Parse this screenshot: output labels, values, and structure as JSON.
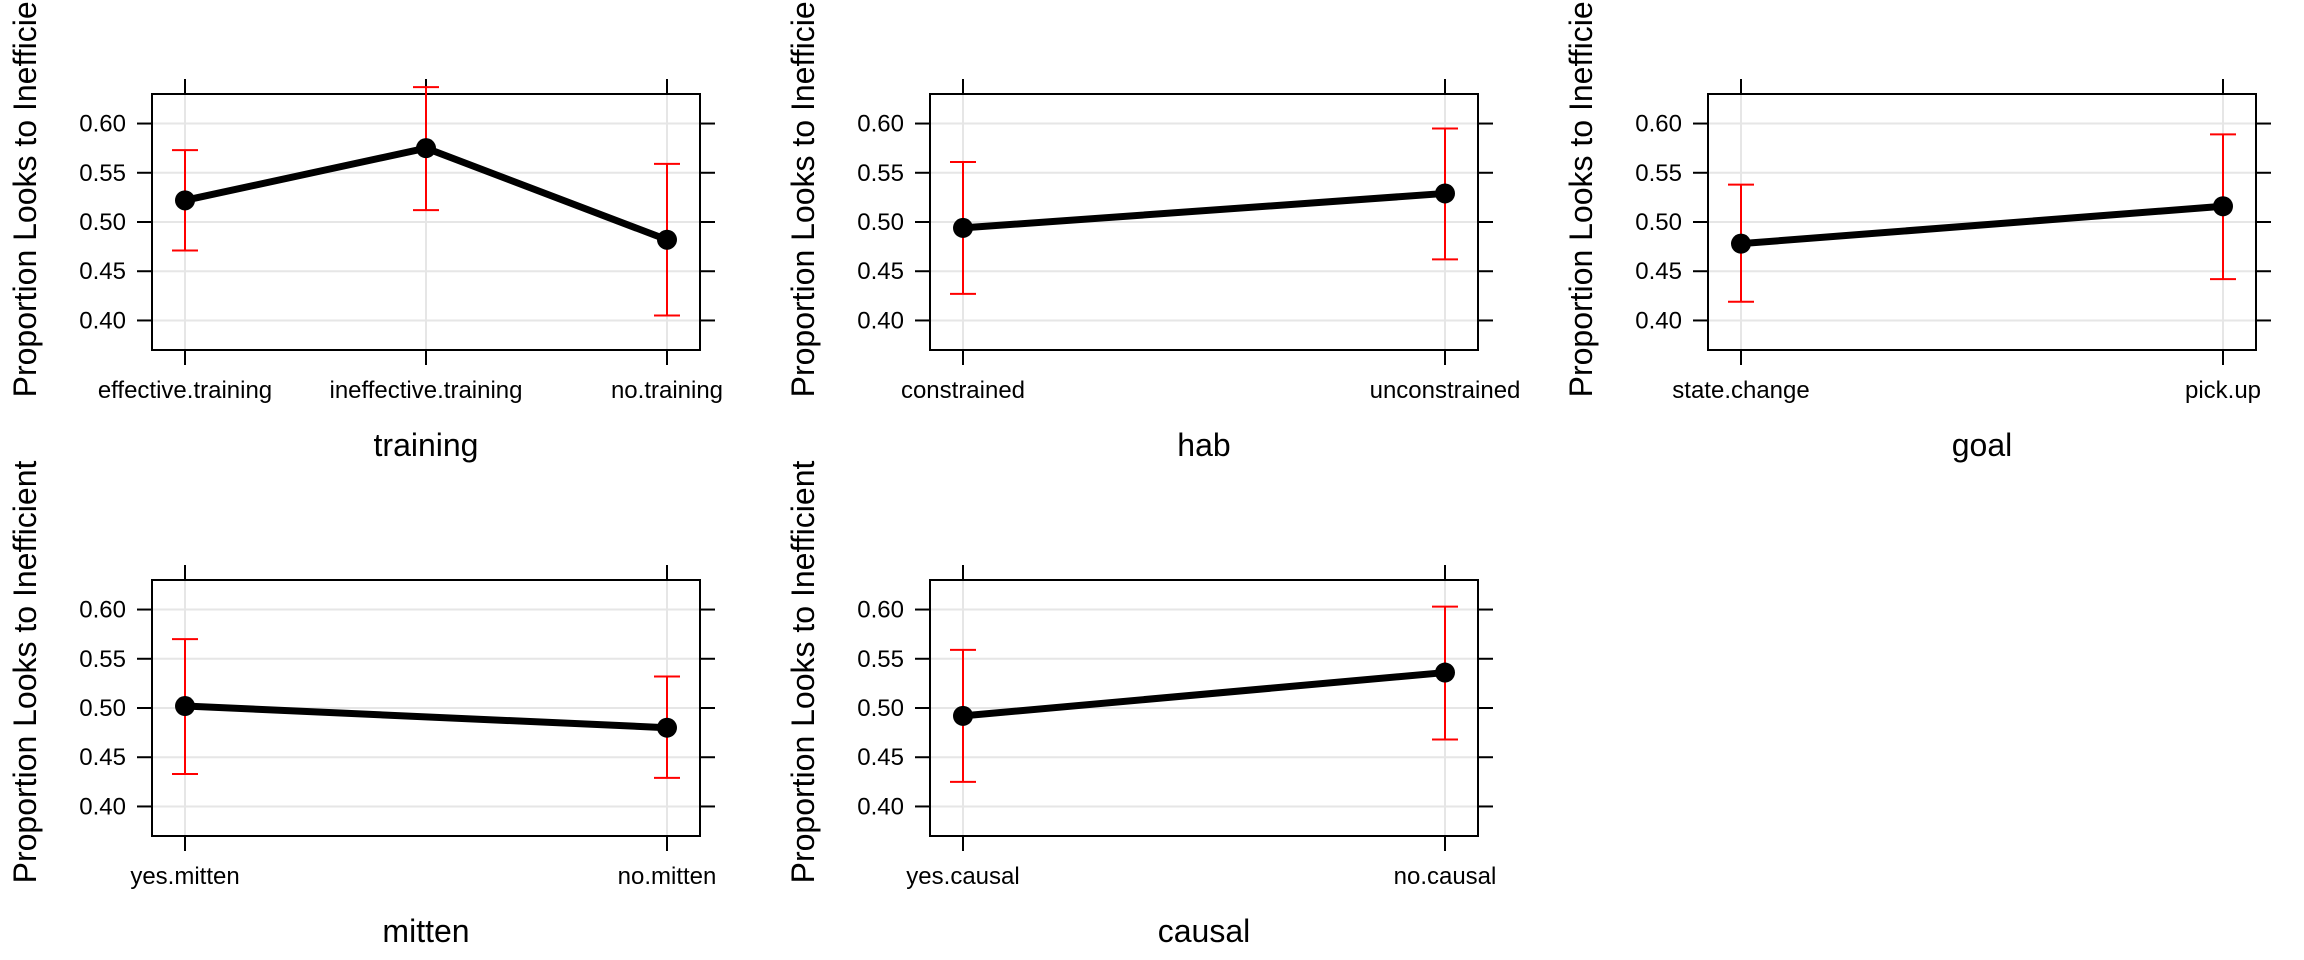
{
  "chart_data": [
    {
      "type": "line",
      "variable": "training",
      "xlabel": "training",
      "ylabel": "Proportion Looks to Inefficient",
      "categories": [
        "effective.training",
        "ineffective.training",
        "no.training"
      ],
      "values": [
        0.522,
        0.575,
        0.482
      ],
      "lower": [
        0.471,
        0.512,
        0.405
      ],
      "upper": [
        0.573,
        0.637,
        0.559
      ],
      "ylim": [
        0.37,
        0.63
      ],
      "yticks": [
        "0.40",
        "0.45",
        "0.50",
        "0.55",
        "0.60"
      ],
      "grid": true,
      "colors": {
        "line": "#000000",
        "ci": "#ff0000"
      }
    },
    {
      "type": "line",
      "variable": "hab",
      "xlabel": "hab",
      "ylabel": "Proportion Looks to Inefficient",
      "categories": [
        "constrained",
        "unconstrained"
      ],
      "values": [
        0.494,
        0.529
      ],
      "lower": [
        0.427,
        0.462
      ],
      "upper": [
        0.561,
        0.595
      ],
      "ylim": [
        0.37,
        0.63
      ],
      "yticks": [
        "0.40",
        "0.45",
        "0.50",
        "0.55",
        "0.60"
      ],
      "grid": true,
      "colors": {
        "line": "#000000",
        "ci": "#ff0000"
      }
    },
    {
      "type": "line",
      "variable": "goal",
      "xlabel": "goal",
      "ylabel": "Proportion Looks to Inefficient",
      "categories": [
        "state.change",
        "pick.up"
      ],
      "values": [
        0.478,
        0.516
      ],
      "lower": [
        0.419,
        0.442
      ],
      "upper": [
        0.538,
        0.589
      ],
      "ylim": [
        0.37,
        0.63
      ],
      "yticks": [
        "0.40",
        "0.45",
        "0.50",
        "0.55",
        "0.60"
      ],
      "grid": true,
      "colors": {
        "line": "#000000",
        "ci": "#ff0000"
      }
    },
    {
      "type": "line",
      "variable": "mitten",
      "xlabel": "mitten",
      "ylabel": "Proportion Looks to Inefficient",
      "categories": [
        "yes.mitten",
        "no.mitten"
      ],
      "values": [
        0.502,
        0.48
      ],
      "lower": [
        0.433,
        0.429
      ],
      "upper": [
        0.57,
        0.532
      ],
      "ylim": [
        0.37,
        0.63
      ],
      "yticks": [
        "0.40",
        "0.45",
        "0.50",
        "0.55",
        "0.60"
      ],
      "grid": true,
      "colors": {
        "line": "#000000",
        "ci": "#ff0000"
      }
    },
    {
      "type": "line",
      "variable": "causal",
      "xlabel": "causal",
      "ylabel": "Proportion Looks to Inefficient",
      "categories": [
        "yes.causal",
        "no.causal"
      ],
      "values": [
        0.492,
        0.536
      ],
      "lower": [
        0.425,
        0.468
      ],
      "upper": [
        0.559,
        0.603
      ],
      "ylim": [
        0.37,
        0.63
      ],
      "yticks": [
        "0.40",
        "0.45",
        "0.50",
        "0.55",
        "0.60"
      ],
      "grid": true,
      "colors": {
        "line": "#000000",
        "ci": "#ff0000"
      }
    }
  ]
}
